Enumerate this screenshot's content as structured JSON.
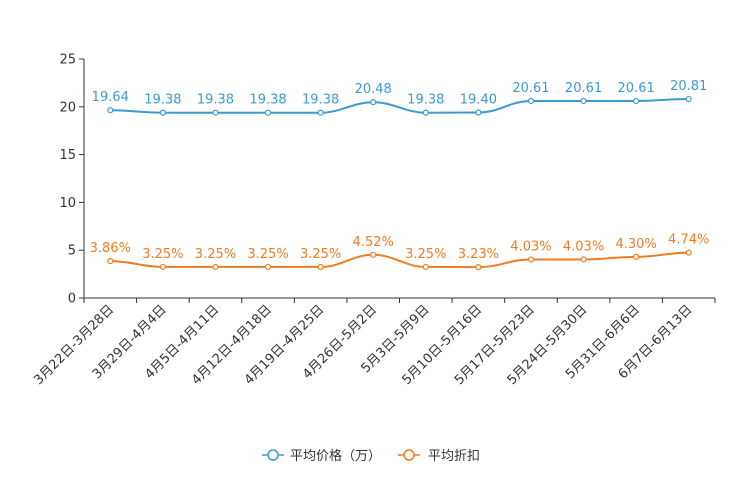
{
  "chart_data": {
    "type": "line",
    "title": "",
    "xlabel": "",
    "ylabel": "",
    "ylim": [
      0,
      25
    ],
    "yticks": [
      0,
      5,
      10,
      15,
      20,
      25
    ],
    "grid": false,
    "legend_position": "bottom-center",
    "categories": [
      "3月22日-3月28日",
      "3月29日-4月4日",
      "4月5日-4月11日",
      "4月12日-4月18日",
      "4月19日-4月25日",
      "4月26日-5月2日",
      "5月3日-5月9日",
      "5月10日-5月16日",
      "5月17日-5月23日",
      "5月24日-5月30日",
      "5月31日-6月6日",
      "6月7日-6月13日"
    ],
    "series": [
      {
        "name": "平均价格（万）",
        "color": "#3b9bd0",
        "values": [
          19.64,
          19.38,
          19.38,
          19.38,
          19.38,
          20.48,
          19.38,
          19.4,
          20.61,
          20.61,
          20.61,
          20.81
        ],
        "labels": [
          "19.64",
          "19.38",
          "19.38",
          "19.38",
          "19.38",
          "20.48",
          "19.38",
          "19.40",
          "20.61",
          "20.61",
          "20.61",
          "20.81"
        ]
      },
      {
        "name": "平均折扣",
        "color": "#f07c22",
        "values": [
          3.86,
          3.25,
          3.25,
          3.25,
          3.25,
          4.52,
          3.25,
          3.23,
          4.03,
          4.03,
          4.3,
          4.74
        ],
        "labels": [
          "3.86%",
          "3.25%",
          "3.25%",
          "3.25%",
          "3.25%",
          "4.52%",
          "3.25%",
          "3.23%",
          "4.03%",
          "4.03%",
          "4.30%",
          "4.74%"
        ]
      }
    ]
  }
}
